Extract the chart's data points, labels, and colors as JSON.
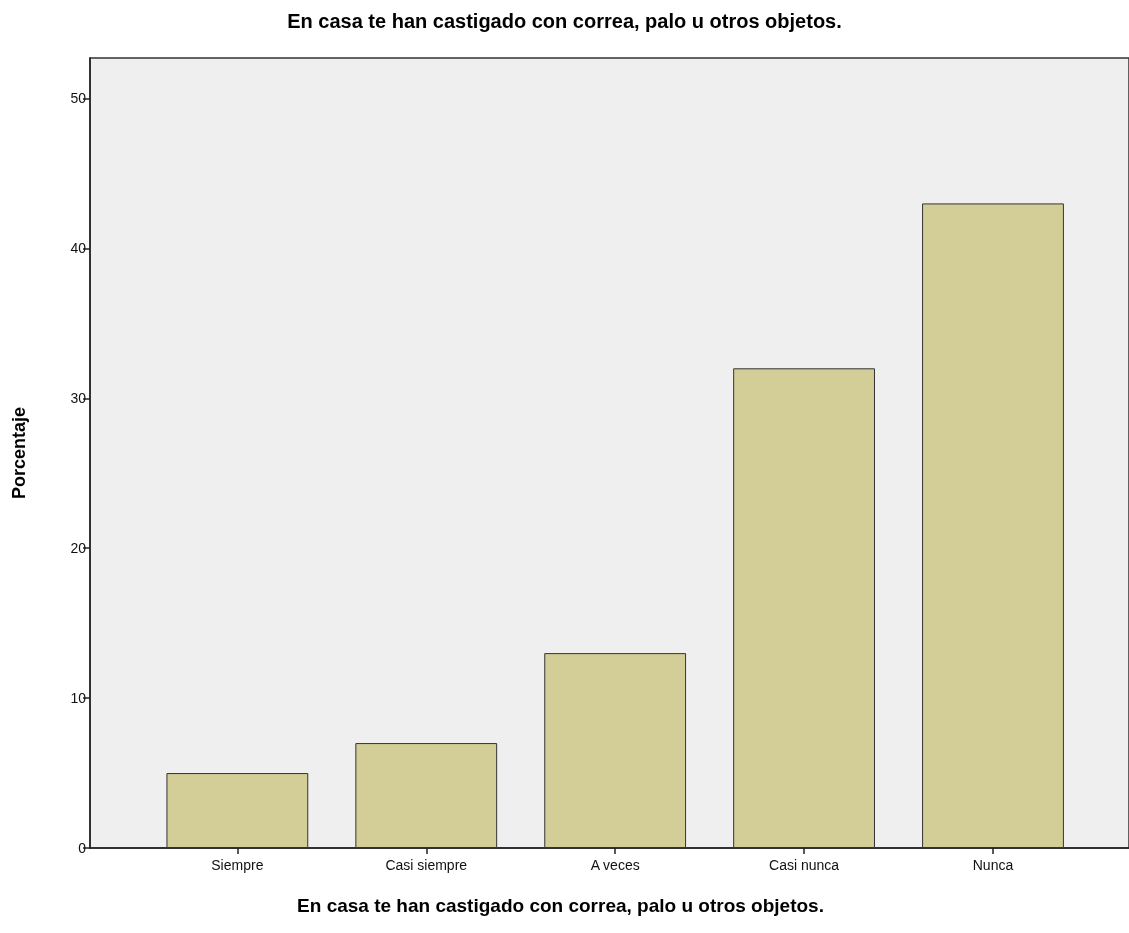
{
  "chart_data": {
    "type": "bar",
    "title": "En casa te han castigado con correa, palo u otros objetos.",
    "xlabel": "En casa te han castigado con correa, palo u otros objetos.",
    "ylabel": "Porcentaje",
    "categories": [
      "Siempre",
      "Casi siempre",
      "A veces",
      "Casi nunca",
      "Nunca"
    ],
    "values": [
      5,
      7,
      13,
      32,
      43
    ],
    "color": "#d3ce97",
    "ylim": [
      0,
      52.7
    ],
    "yticks": [
      0,
      10,
      20,
      30,
      40,
      50
    ]
  }
}
